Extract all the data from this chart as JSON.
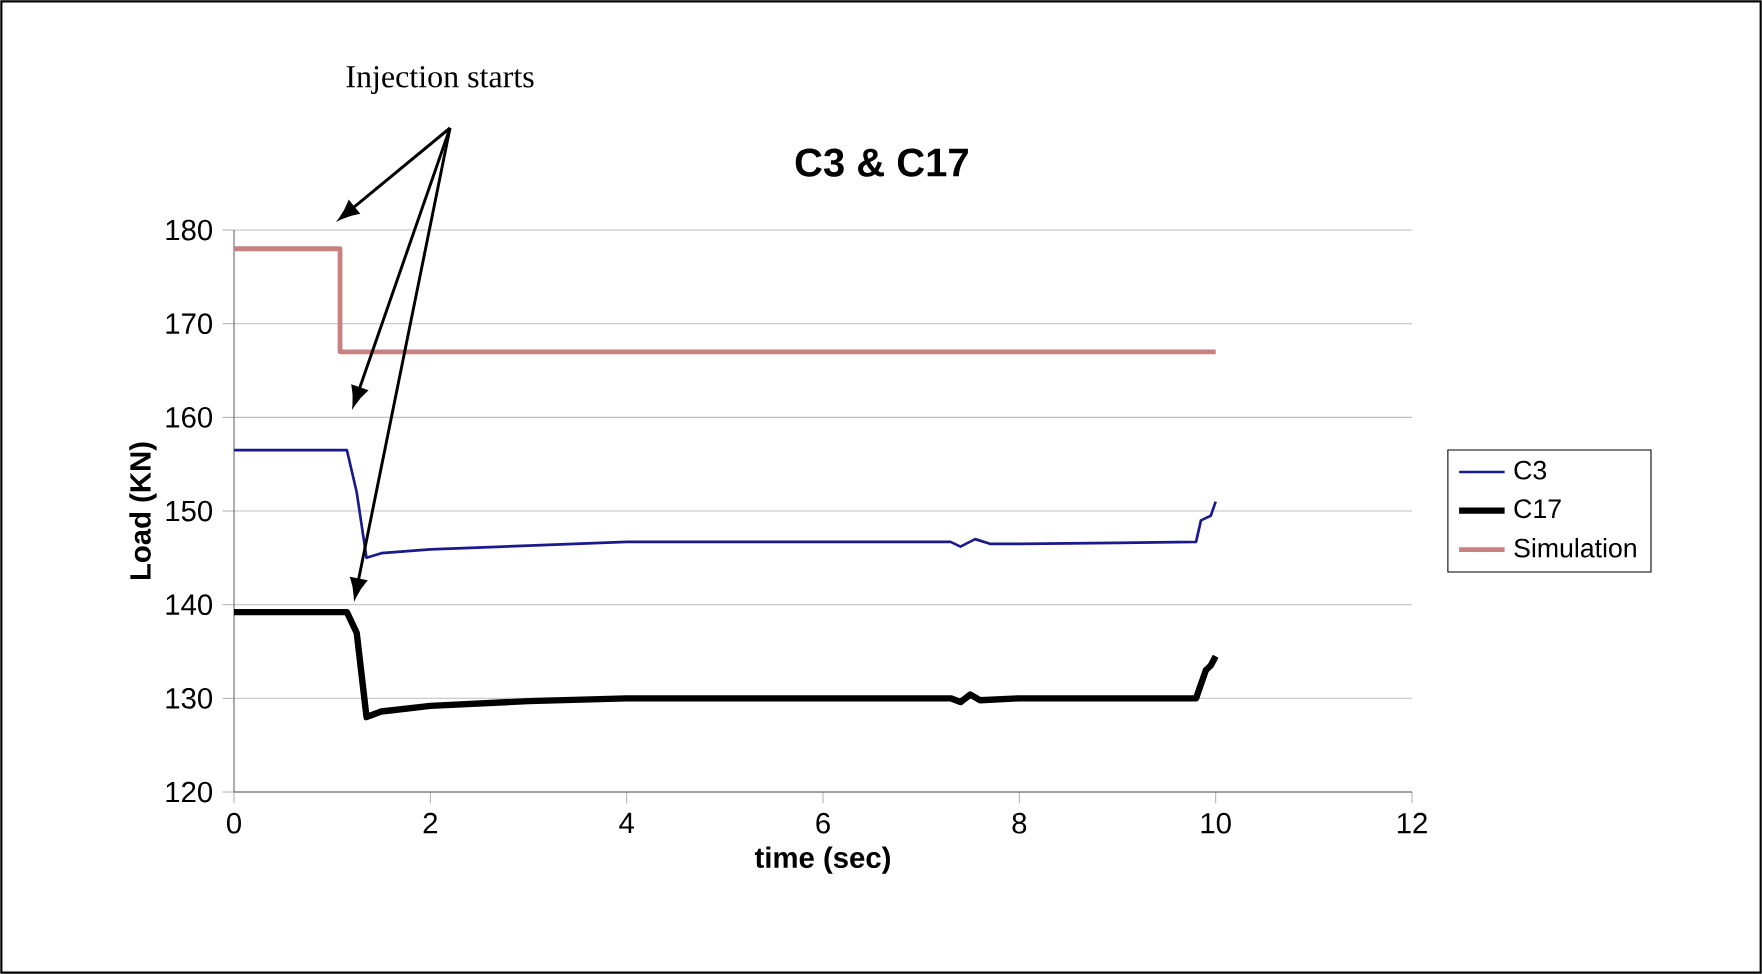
{
  "chart_data": {
    "type": "line",
    "title": "C3 & C17",
    "xlabel": "time (sec)",
    "ylabel": "Load (KN)",
    "annotations": [
      "Injection starts"
    ],
    "xlim": [
      0,
      12
    ],
    "xticks": [
      0,
      2,
      4,
      6,
      8,
      10,
      12
    ],
    "ylim": [
      120,
      180
    ],
    "yticks": [
      120,
      130,
      140,
      150,
      160,
      170,
      180
    ],
    "grid": "y",
    "legend": "right",
    "line_style": "solid",
    "marker": "none",
    "series": [
      {
        "name": "C3",
        "color": "#1a1a8c",
        "x": [
          0,
          1.15,
          1.25,
          1.35,
          1.5,
          2,
          3,
          4,
          5,
          6,
          7,
          7.3,
          7.4,
          7.55,
          7.7,
          8,
          9,
          9.8,
          9.85,
          9.95,
          10
        ],
        "values": [
          156.5,
          156.5,
          152,
          145,
          145.5,
          145.9,
          146.3,
          146.7,
          146.7,
          146.7,
          146.7,
          146.7,
          146.2,
          147,
          146.5,
          146.5,
          146.6,
          146.7,
          149,
          149.5,
          151
        ]
      },
      {
        "name": "C17",
        "color": "#000000",
        "x": [
          0,
          1.15,
          1.25,
          1.35,
          1.5,
          2,
          3,
          4,
          5,
          6,
          7,
          7.3,
          7.4,
          7.5,
          7.6,
          8,
          9,
          9.8,
          9.9,
          9.95,
          10
        ],
        "values": [
          139.2,
          139.2,
          137,
          128,
          128.6,
          129.2,
          129.7,
          130,
          130,
          130,
          130,
          130,
          129.6,
          130.4,
          129.8,
          130,
          130,
          130,
          133,
          133.5,
          134.5
        ]
      },
      {
        "name": "Simulation",
        "color": "#c88080",
        "type": "step",
        "x": [
          0,
          1.08,
          10
        ],
        "values": [
          178,
          167,
          167
        ]
      }
    ]
  }
}
